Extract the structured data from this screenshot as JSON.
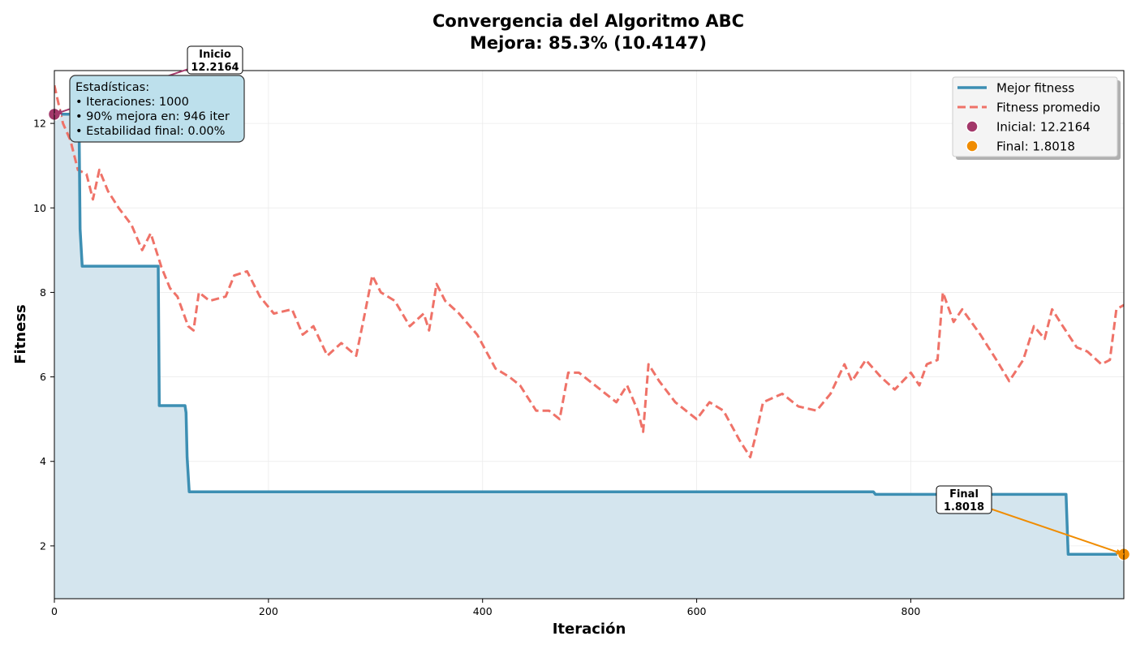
{
  "chart_data": {
    "type": "line",
    "title": "Convergencia del Algoritmo ABC",
    "subtitle": "Mejora: 85.3% (10.4147)",
    "xlabel": "Iteración",
    "ylabel": "Fitness",
    "xlim": [
      0,
      999
    ],
    "ylim": [
      0.75,
      13.25
    ],
    "xticks": [
      0,
      200,
      400,
      600,
      800
    ],
    "yticks": [
      2,
      4,
      6,
      8,
      10,
      12
    ],
    "grid": true,
    "legend_position": "top-right",
    "colors": {
      "best": "#3d8fb3",
      "best_fill": "#d4e5ee",
      "avg": "#ef7268",
      "initial": "#a3386a",
      "final": "#f08c00",
      "stats_box": "#bde0ec"
    },
    "series": [
      {
        "name": "Mejor fitness",
        "style": "solid",
        "points": [
          [
            0,
            12.2164
          ],
          [
            23,
            12.2164
          ],
          [
            24,
            9.5
          ],
          [
            26,
            8.62
          ],
          [
            97,
            8.62
          ],
          [
            98,
            5.32
          ],
          [
            122,
            5.32
          ],
          [
            123,
            5.15
          ],
          [
            124,
            4.1
          ],
          [
            126,
            3.28
          ],
          [
            765,
            3.28
          ],
          [
            767,
            3.22
          ],
          [
            945,
            3.22
          ],
          [
            947,
            1.8018
          ],
          [
            999,
            1.8018
          ]
        ]
      },
      {
        "name": "Fitness promedio",
        "style": "dashed",
        "points": [
          [
            0,
            12.9
          ],
          [
            8,
            12.0
          ],
          [
            15,
            11.6
          ],
          [
            22,
            10.9
          ],
          [
            30,
            10.8
          ],
          [
            36,
            10.2
          ],
          [
            42,
            10.9
          ],
          [
            50,
            10.4
          ],
          [
            60,
            10.0
          ],
          [
            72,
            9.6
          ],
          [
            82,
            9.0
          ],
          [
            90,
            9.4
          ],
          [
            100,
            8.6
          ],
          [
            108,
            8.1
          ],
          [
            115,
            7.9
          ],
          [
            125,
            7.2
          ],
          [
            130,
            7.1
          ],
          [
            135,
            8.0
          ],
          [
            145,
            7.8
          ],
          [
            160,
            7.9
          ],
          [
            168,
            8.4
          ],
          [
            180,
            8.5
          ],
          [
            192,
            7.9
          ],
          [
            205,
            7.5
          ],
          [
            222,
            7.6
          ],
          [
            232,
            7.0
          ],
          [
            242,
            7.2
          ],
          [
            255,
            6.5
          ],
          [
            268,
            6.8
          ],
          [
            282,
            6.5
          ],
          [
            290,
            7.5
          ],
          [
            297,
            8.4
          ],
          [
            305,
            8.0
          ],
          [
            318,
            7.8
          ],
          [
            332,
            7.2
          ],
          [
            345,
            7.5
          ],
          [
            350,
            7.1
          ],
          [
            357,
            8.2
          ],
          [
            365,
            7.8
          ],
          [
            378,
            7.5
          ],
          [
            395,
            7.0
          ],
          [
            412,
            6.2
          ],
          [
            425,
            6.0
          ],
          [
            435,
            5.8
          ],
          [
            450,
            5.2
          ],
          [
            462,
            5.2
          ],
          [
            472,
            5.0
          ],
          [
            480,
            6.1
          ],
          [
            490,
            6.1
          ],
          [
            510,
            5.7
          ],
          [
            525,
            5.4
          ],
          [
            535,
            5.8
          ],
          [
            545,
            5.2
          ],
          [
            550,
            4.7
          ],
          [
            555,
            6.3
          ],
          [
            565,
            5.9
          ],
          [
            580,
            5.4
          ],
          [
            600,
            5.0
          ],
          [
            612,
            5.4
          ],
          [
            625,
            5.2
          ],
          [
            640,
            4.5
          ],
          [
            650,
            4.1
          ],
          [
            655,
            4.6
          ],
          [
            662,
            5.4
          ],
          [
            680,
            5.6
          ],
          [
            695,
            5.3
          ],
          [
            712,
            5.2
          ],
          [
            725,
            5.6
          ],
          [
            738,
            6.3
          ],
          [
            745,
            5.9
          ],
          [
            758,
            6.4
          ],
          [
            772,
            6.0
          ],
          [
            785,
            5.7
          ],
          [
            800,
            6.1
          ],
          [
            808,
            5.8
          ],
          [
            815,
            6.3
          ],
          [
            825,
            6.4
          ],
          [
            830,
            8.0
          ],
          [
            840,
            7.3
          ],
          [
            848,
            7.6
          ],
          [
            865,
            7.0
          ],
          [
            880,
            6.4
          ],
          [
            892,
            5.9
          ],
          [
            905,
            6.4
          ],
          [
            915,
            7.2
          ],
          [
            925,
            6.9
          ],
          [
            932,
            7.6
          ],
          [
            942,
            7.2
          ],
          [
            955,
            6.7
          ],
          [
            965,
            6.6
          ],
          [
            978,
            6.3
          ],
          [
            986,
            6.4
          ],
          [
            992,
            7.6
          ],
          [
            999,
            7.7
          ]
        ]
      }
    ],
    "markers": [
      {
        "name": "Inicial: 12.2164",
        "x": 0,
        "y": 12.2164
      },
      {
        "name": "Final: 1.8018",
        "x": 999,
        "y": 1.8018
      }
    ],
    "annotations": [
      {
        "lines": [
          "Inicio",
          "12.2164"
        ],
        "x": 0,
        "y": 12.2164
      },
      {
        "lines": [
          "Final",
          "1.8018"
        ],
        "x": 999,
        "y": 1.8018
      }
    ],
    "stats": {
      "title": "Estadísticas:",
      "lines": [
        "• Iteraciones: 1000",
        "• 90% mejora en: 946 iter",
        "• Estabilidad final: 0.00%"
      ]
    }
  }
}
